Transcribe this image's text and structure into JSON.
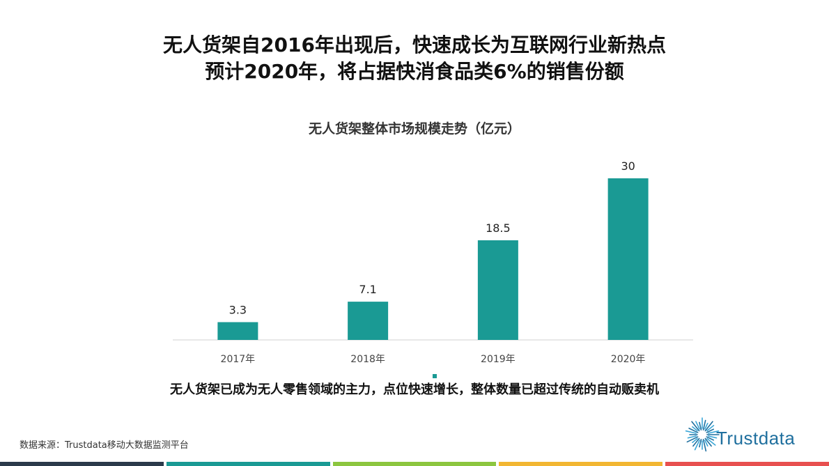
{
  "headline": {
    "line1": "无人货架自2016年出现后，快速成长为互联网行业新热点",
    "line2": "预计2020年，将占据快消食品类6%的销售份额"
  },
  "chart_data": {
    "type": "bar",
    "title": "无人货架整体市场规模走势（亿元）",
    "categories": [
      "2017年",
      "2018年",
      "2019年",
      "2020年"
    ],
    "values": [
      3.3,
      7.1,
      18.5,
      30
    ],
    "value_labels": [
      "3.3",
      "7.1",
      "18.5",
      "30"
    ],
    "ylim": [
      0,
      30
    ],
    "grid": false,
    "bar_color": "#1a9a94"
  },
  "caption": "无人货架已成为无人零售领域的主力，点位快速增长，整体数量已超过传统的自动贩卖机",
  "source": "数据来源：Trustdata移动大数据监测平台",
  "logo": {
    "text": "Trustdata",
    "icon": "starburst-logo-icon",
    "color": "#1f6f9e"
  },
  "footer_colors": [
    "#2b3a4a",
    "#1a9a94",
    "#8cc63f",
    "#f2b632",
    "#e8504f"
  ]
}
